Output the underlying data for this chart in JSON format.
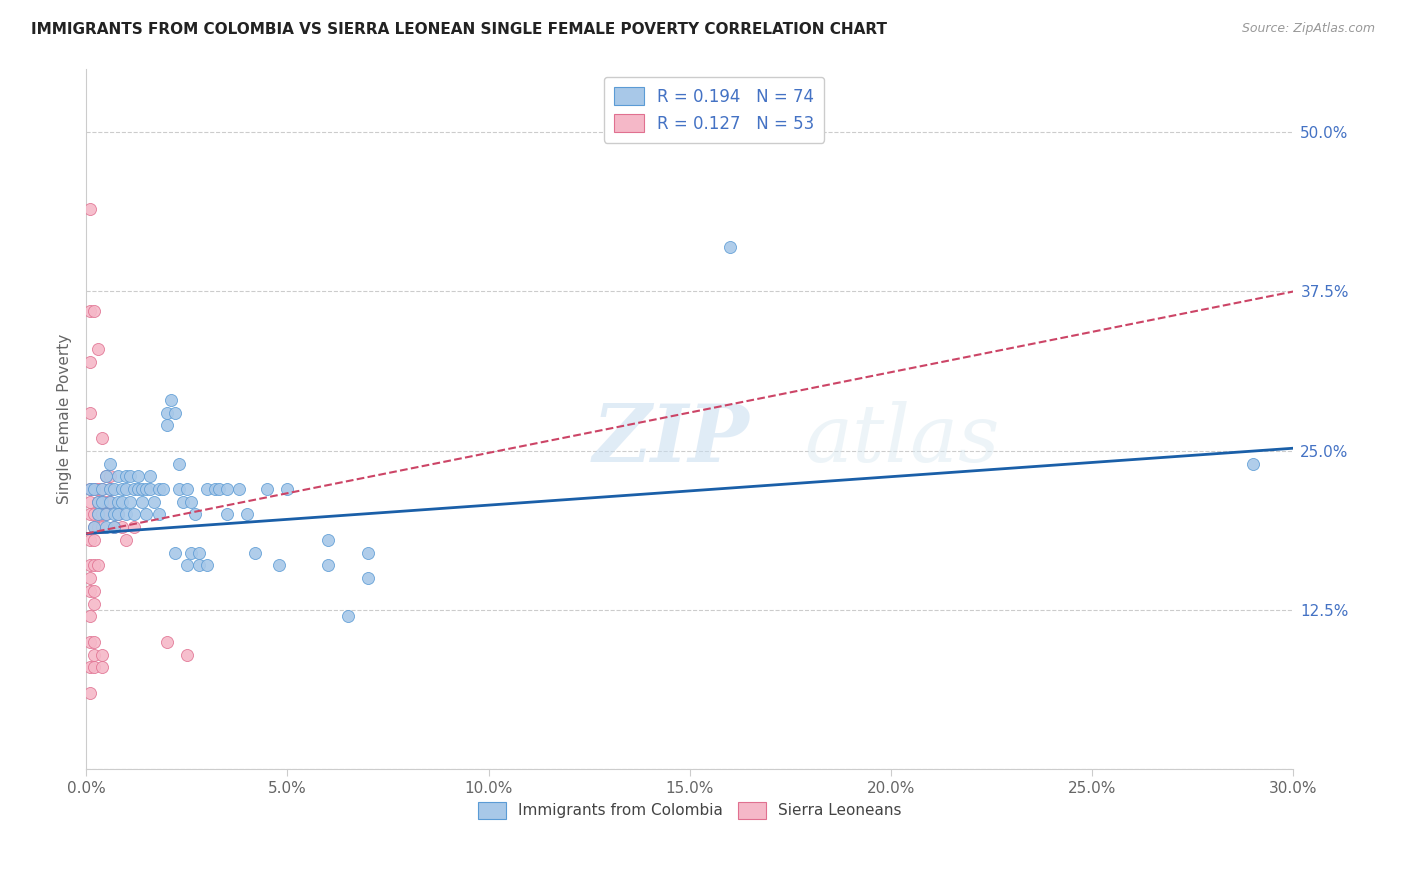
{
  "title": "IMMIGRANTS FROM COLOMBIA VS SIERRA LEONEAN SINGLE FEMALE POVERTY CORRELATION CHART",
  "source": "Source: ZipAtlas.com",
  "ylabel": "Single Female Poverty",
  "right_yticks": [
    0.0,
    0.125,
    0.25,
    0.375,
    0.5
  ],
  "right_yticklabels": [
    "",
    "12.5%",
    "25.0%",
    "37.5%",
    "50.0%"
  ],
  "legend_labels_bottom": [
    "Immigrants from Colombia",
    "Sierra Leoneans"
  ],
  "watermark": "ZIPatlas",
  "blue_color": "#a8c8e8",
  "pink_color": "#f5b8c8",
  "blue_edge_color": "#5b9bd5",
  "pink_edge_color": "#e07090",
  "blue_trend_color": "#1a5fa8",
  "pink_trend_color": "#cc4466",
  "blue_scatter": [
    [
      0.001,
      0.22
    ],
    [
      0.002,
      0.22
    ],
    [
      0.002,
      0.19
    ],
    [
      0.003,
      0.21
    ],
    [
      0.003,
      0.2
    ],
    [
      0.004,
      0.22
    ],
    [
      0.004,
      0.21
    ],
    [
      0.005,
      0.23
    ],
    [
      0.005,
      0.2
    ],
    [
      0.005,
      0.19
    ],
    [
      0.006,
      0.22
    ],
    [
      0.006,
      0.24
    ],
    [
      0.006,
      0.21
    ],
    [
      0.007,
      0.22
    ],
    [
      0.007,
      0.2
    ],
    [
      0.007,
      0.19
    ],
    [
      0.008,
      0.23
    ],
    [
      0.008,
      0.21
    ],
    [
      0.008,
      0.2
    ],
    [
      0.009,
      0.22
    ],
    [
      0.009,
      0.21
    ],
    [
      0.01,
      0.23
    ],
    [
      0.01,
      0.2
    ],
    [
      0.01,
      0.22
    ],
    [
      0.011,
      0.21
    ],
    [
      0.011,
      0.23
    ],
    [
      0.012,
      0.22
    ],
    [
      0.012,
      0.2
    ],
    [
      0.013,
      0.23
    ],
    [
      0.013,
      0.22
    ],
    [
      0.014,
      0.21
    ],
    [
      0.014,
      0.22
    ],
    [
      0.015,
      0.22
    ],
    [
      0.015,
      0.2
    ],
    [
      0.016,
      0.22
    ],
    [
      0.016,
      0.23
    ],
    [
      0.017,
      0.21
    ],
    [
      0.018,
      0.22
    ],
    [
      0.018,
      0.2
    ],
    [
      0.019,
      0.22
    ],
    [
      0.02,
      0.28
    ],
    [
      0.02,
      0.27
    ],
    [
      0.021,
      0.29
    ],
    [
      0.022,
      0.28
    ],
    [
      0.022,
      0.17
    ],
    [
      0.023,
      0.24
    ],
    [
      0.023,
      0.22
    ],
    [
      0.024,
      0.21
    ],
    [
      0.025,
      0.22
    ],
    [
      0.025,
      0.16
    ],
    [
      0.026,
      0.21
    ],
    [
      0.026,
      0.17
    ],
    [
      0.027,
      0.2
    ],
    [
      0.028,
      0.16
    ],
    [
      0.028,
      0.17
    ],
    [
      0.03,
      0.22
    ],
    [
      0.03,
      0.16
    ],
    [
      0.032,
      0.22
    ],
    [
      0.033,
      0.22
    ],
    [
      0.035,
      0.22
    ],
    [
      0.035,
      0.2
    ],
    [
      0.038,
      0.22
    ],
    [
      0.04,
      0.2
    ],
    [
      0.042,
      0.17
    ],
    [
      0.045,
      0.22
    ],
    [
      0.048,
      0.16
    ],
    [
      0.05,
      0.22
    ],
    [
      0.06,
      0.16
    ],
    [
      0.06,
      0.18
    ],
    [
      0.065,
      0.12
    ],
    [
      0.07,
      0.17
    ],
    [
      0.07,
      0.15
    ],
    [
      0.16,
      0.41
    ],
    [
      0.29,
      0.24
    ]
  ],
  "pink_scatter": [
    [
      0.001,
      0.44
    ],
    [
      0.001,
      0.36
    ],
    [
      0.001,
      0.32
    ],
    [
      0.001,
      0.28
    ],
    [
      0.001,
      0.22
    ],
    [
      0.001,
      0.21
    ],
    [
      0.001,
      0.2
    ],
    [
      0.001,
      0.18
    ],
    [
      0.001,
      0.16
    ],
    [
      0.001,
      0.15
    ],
    [
      0.001,
      0.14
    ],
    [
      0.001,
      0.12
    ],
    [
      0.001,
      0.1
    ],
    [
      0.001,
      0.08
    ],
    [
      0.001,
      0.06
    ],
    [
      0.002,
      0.22
    ],
    [
      0.002,
      0.2
    ],
    [
      0.002,
      0.19
    ],
    [
      0.002,
      0.18
    ],
    [
      0.002,
      0.16
    ],
    [
      0.002,
      0.14
    ],
    [
      0.002,
      0.13
    ],
    [
      0.002,
      0.1
    ],
    [
      0.002,
      0.09
    ],
    [
      0.002,
      0.08
    ],
    [
      0.002,
      0.36
    ],
    [
      0.003,
      0.33
    ],
    [
      0.003,
      0.22
    ],
    [
      0.003,
      0.21
    ],
    [
      0.003,
      0.2
    ],
    [
      0.003,
      0.19
    ],
    [
      0.003,
      0.16
    ],
    [
      0.004,
      0.26
    ],
    [
      0.004,
      0.22
    ],
    [
      0.004,
      0.21
    ],
    [
      0.004,
      0.2
    ],
    [
      0.004,
      0.19
    ],
    [
      0.004,
      0.09
    ],
    [
      0.004,
      0.08
    ],
    [
      0.005,
      0.23
    ],
    [
      0.005,
      0.21
    ],
    [
      0.005,
      0.2
    ],
    [
      0.006,
      0.23
    ],
    [
      0.006,
      0.22
    ],
    [
      0.006,
      0.21
    ],
    [
      0.007,
      0.19
    ],
    [
      0.008,
      0.2
    ],
    [
      0.009,
      0.19
    ],
    [
      0.01,
      0.18
    ],
    [
      0.012,
      0.19
    ],
    [
      0.02,
      0.1
    ],
    [
      0.025,
      0.09
    ]
  ],
  "xlim": [
    0.0,
    0.3
  ],
  "ylim": [
    0.0,
    0.55
  ],
  "blue_trend_x": [
    0.0,
    0.3
  ],
  "blue_trend_y": [
    0.185,
    0.252
  ],
  "pink_trend_x": [
    0.0,
    0.3
  ],
  "pink_trend_y": [
    0.185,
    0.375
  ]
}
